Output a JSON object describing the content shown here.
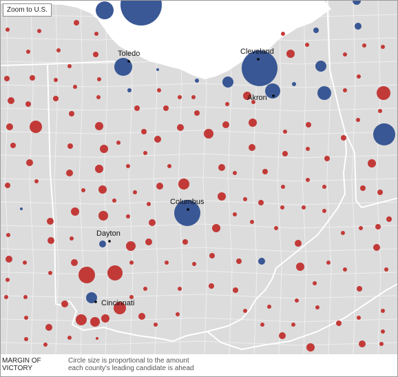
{
  "controls": {
    "zoom_label": "Zoom to U.S."
  },
  "cities": [
    {
      "name": "Toledo"
    },
    {
      "name": "Cleveland"
    },
    {
      "name": "Akron"
    },
    {
      "name": "Columbus"
    },
    {
      "name": "Dayton"
    },
    {
      "name": "Cincinnati"
    }
  ],
  "legend": {
    "title_line1": "MARGIN OF",
    "title_line2": "VICTORY",
    "text_line1": "Circle size is proportional to the amount",
    "text_line2": "each county's leading candidate is ahead"
  },
  "colors": {
    "land": "#dcdcdc",
    "water": "#ffffff",
    "county_line": "#f2f2f2",
    "state_line": "#ffffff",
    "republican": "#c0302e",
    "democrat": "#2f4f8f"
  }
}
